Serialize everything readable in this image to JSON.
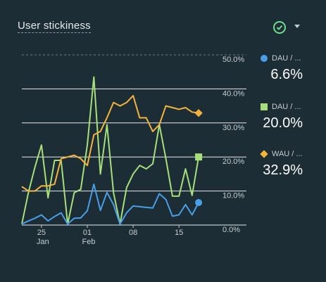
{
  "card": {
    "title": "User stickiness"
  },
  "colors": {
    "dau_mau": "#4a9ee8",
    "dau_wau": "#a7e07a",
    "wau_mau": "#f6b43c"
  },
  "legend": [
    {
      "label": "DAU / ...",
      "value": "6.6%",
      "marker": "circle",
      "color": "#4a9ee8"
    },
    {
      "label": "DAU / ...",
      "value": "20.0%",
      "marker": "square",
      "color": "#a7e07a"
    },
    {
      "label": "WAU / ...",
      "value": "32.9%",
      "marker": "diamond",
      "color": "#f6b43c"
    }
  ],
  "chart_data": {
    "type": "line",
    "ylim": [
      0,
      50
    ],
    "yticks": [
      "0.0%",
      "10.0%",
      "20.0%",
      "30.0%",
      "40.0%",
      "50.0%"
    ],
    "ytick_values": [
      0,
      10,
      20,
      30,
      40,
      50
    ],
    "xlim": [
      0,
      30
    ],
    "xticks": [
      {
        "x": 3,
        "label": "25",
        "sub": "Jan"
      },
      {
        "x": 10,
        "label": "01",
        "sub": "Feb"
      },
      {
        "x": 17,
        "label": "08",
        "sub": ""
      },
      {
        "x": 24,
        "label": "15",
        "sub": ""
      }
    ],
    "series": [
      {
        "key": "dau_mau",
        "color": "#4a9ee8",
        "values": [
          0.3,
          1.2,
          2,
          3,
          1.2,
          2.5,
          3.6,
          0.3,
          2,
          2.1,
          4.2,
          12,
          4.3,
          9.6,
          6,
          0.3,
          3.6,
          5.6,
          5.4,
          5.2,
          5,
          9.2,
          7.5,
          2.6,
          3,
          6,
          3,
          6.6
        ]
      },
      {
        "key": "dau_wau",
        "color": "#a7e07a",
        "values": [
          0.3,
          9.5,
          17,
          23.5,
          8,
          19,
          19,
          0.3,
          9.5,
          10.5,
          23.5,
          43.5,
          15,
          29.5,
          9.5,
          0.3,
          11,
          15,
          17.5,
          16.5,
          18,
          29.5,
          19.5,
          8.5,
          8.5,
          16.5,
          8.7,
          20
        ]
      },
      {
        "key": "wau_mau",
        "color": "#f6b43c",
        "values": [
          11.3,
          10,
          10,
          11.5,
          11.5,
          12,
          19.5,
          20,
          20.5,
          19.5,
          17.5,
          26.5,
          27.5,
          31.5,
          36,
          35,
          36,
          38,
          31.5,
          31.5,
          27.5,
          29.5,
          35,
          34.5,
          34,
          34.5,
          33.2,
          32.9
        ]
      }
    ]
  }
}
